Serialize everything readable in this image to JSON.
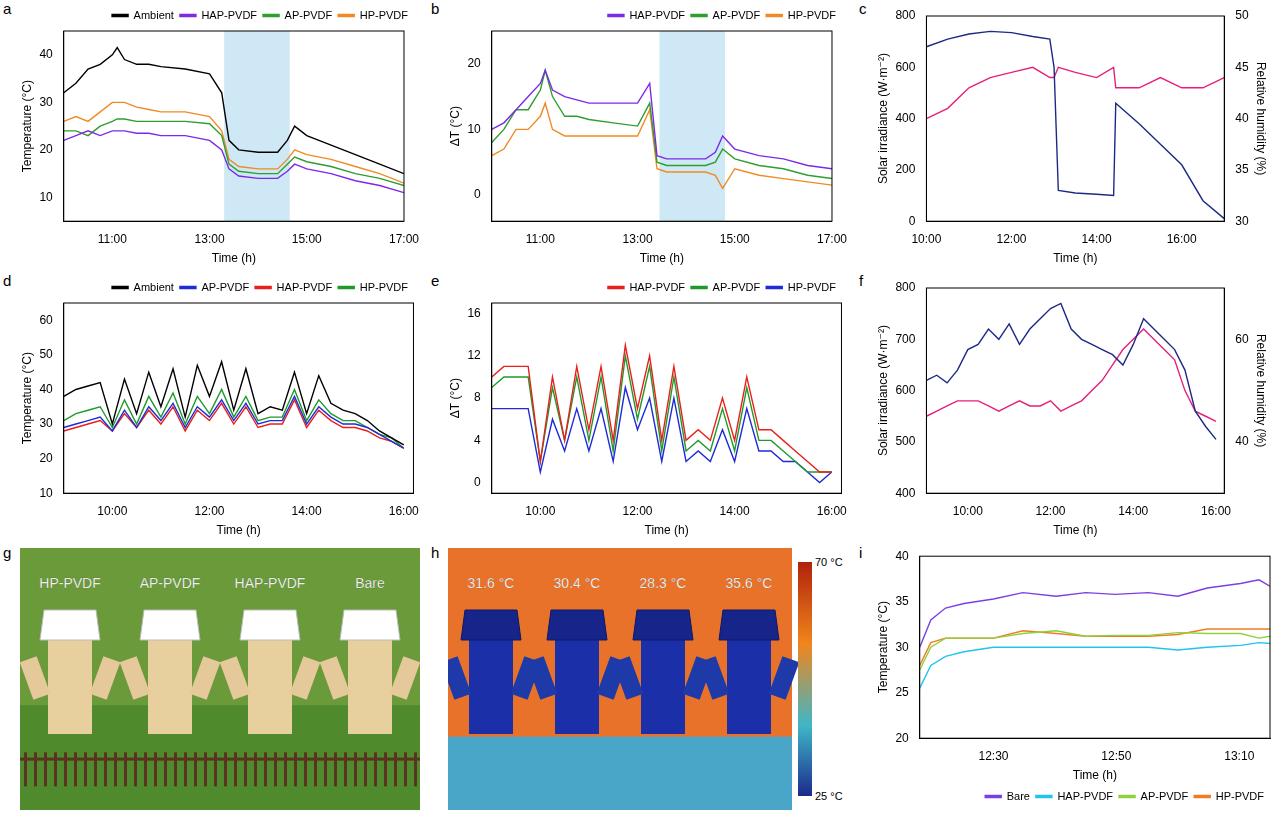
{
  "chart_data": [
    {
      "panel": "a",
      "type": "line",
      "xlabel": "Time (h)",
      "ylabel": "Temperature (°C)",
      "xlim": [
        10,
        17
      ],
      "xticks": [
        {
          "value": 11,
          "label": "11:00"
        },
        {
          "value": 13,
          "label": "13:00"
        },
        {
          "value": 15,
          "label": "15:00"
        },
        {
          "value": 17,
          "label": "17:00"
        }
      ],
      "ylim": [
        5,
        45
      ],
      "yticks": [
        10,
        20,
        30,
        40
      ],
      "grid": false,
      "legend": "top right",
      "highlight": [
        13.3,
        14.65
      ],
      "x": [
        10.0,
        10.25,
        10.5,
        10.75,
        11.0,
        11.1,
        11.25,
        11.5,
        11.75,
        12.0,
        12.5,
        13.0,
        13.25,
        13.4,
        13.6,
        14.0,
        14.4,
        14.6,
        14.75,
        15.0,
        15.5,
        16.0,
        16.5,
        17.0
      ],
      "series": [
        {
          "name": "Ambient",
          "color": "#000000",
          "values": [
            32,
            34,
            37,
            38,
            40,
            41.5,
            39,
            38,
            38,
            37.5,
            37,
            36,
            32,
            22,
            20,
            19.5,
            19.5,
            22,
            25,
            23,
            21,
            19,
            17,
            15
          ]
        },
        {
          "name": "HAP-PVDF",
          "color": "#7d2ae8",
          "values": [
            22,
            23,
            24,
            23,
            24,
            24,
            24,
            23.5,
            23.5,
            23,
            23,
            22,
            20,
            16,
            14.5,
            14,
            14,
            15.5,
            17,
            16,
            15,
            13.5,
            12.5,
            11
          ]
        },
        {
          "name": "AP-PVDF",
          "color": "#2e9e2e",
          "values": [
            24,
            24,
            23,
            25,
            26,
            26.5,
            26.5,
            26,
            26,
            26,
            26,
            25.5,
            23,
            17,
            15.5,
            15,
            15,
            17,
            18.5,
            17.5,
            16.5,
            15,
            14,
            12.5
          ]
        },
        {
          "name": "HP-PVDF",
          "color": "#f08a24",
          "values": [
            26,
            27,
            26,
            28,
            30,
            30,
            30,
            29,
            28.5,
            28,
            28,
            27,
            24,
            18,
            16.5,
            16,
            16,
            18,
            20,
            19,
            18,
            16.5,
            15,
            13
          ]
        }
      ]
    },
    {
      "panel": "b",
      "type": "line",
      "xlabel": "Time (h)",
      "ylabel": "ΔT (°C)",
      "xlim": [
        10,
        17
      ],
      "xticks": [
        {
          "value": 11,
          "label": "11:00"
        },
        {
          "value": 13,
          "label": "13:00"
        },
        {
          "value": 15,
          "label": "15:00"
        },
        {
          "value": 17,
          "label": "17:00"
        }
      ],
      "ylim": [
        -4,
        25
      ],
      "yticks": [
        0,
        10,
        20
      ],
      "grid": false,
      "legend": "top right",
      "highlight": [
        13.45,
        14.8
      ],
      "x": [
        10.0,
        10.25,
        10.5,
        10.75,
        11.0,
        11.1,
        11.25,
        11.5,
        11.75,
        12.0,
        12.5,
        13.0,
        13.25,
        13.4,
        13.6,
        14.0,
        14.4,
        14.6,
        14.75,
        15.0,
        15.5,
        16.0,
        16.5,
        17.0
      ],
      "series": [
        {
          "name": "HAP-PVDF",
          "color": "#7d2ae8",
          "values": [
            10,
            11,
            13,
            15,
            17,
            19,
            16,
            15,
            14.5,
            14,
            14,
            14,
            17,
            6,
            5.5,
            5.5,
            5.5,
            6.5,
            9,
            7,
            6,
            5.5,
            4.5,
            4
          ]
        },
        {
          "name": "AP-PVDF",
          "color": "#2e9e2e",
          "values": [
            8,
            10,
            13,
            13,
            16,
            19,
            15,
            12,
            12,
            11.5,
            11,
            10.5,
            14,
            5,
            4.5,
            4.5,
            4.5,
            5,
            7,
            5.5,
            4.5,
            4,
            3,
            2.5
          ]
        },
        {
          "name": "HP-PVDF",
          "color": "#f08a24",
          "values": [
            6,
            7,
            10,
            10,
            12,
            14,
            10,
            9,
            9,
            9,
            9,
            9,
            13,
            4,
            3.5,
            3.5,
            3.5,
            3,
            1,
            4,
            3,
            2.5,
            2,
            1.5
          ]
        }
      ]
    },
    {
      "panel": "c",
      "type": "line",
      "xlabel": "Time (h)",
      "ylabel": "Solar irradiance (W·m⁻²)",
      "y2label": "Relative humidity (%)",
      "xlim": [
        10,
        17
      ],
      "xticks": [
        {
          "value": 10,
          "label": "10:00"
        },
        {
          "value": 12,
          "label": "12:00"
        },
        {
          "value": 14,
          "label": "14:00"
        },
        {
          "value": 16,
          "label": "16:00"
        }
      ],
      "ylim": [
        0,
        800
      ],
      "yticks": [
        0,
        200,
        400,
        600,
        800
      ],
      "y2lim": [
        30,
        50
      ],
      "y2ticks": [
        30,
        35,
        40,
        45,
        50
      ],
      "grid": false,
      "x": [
        10.0,
        10.5,
        11.0,
        11.5,
        12.0,
        12.5,
        12.9,
        13.0,
        13.1,
        13.5,
        14.0,
        14.4,
        14.45,
        15.0,
        15.5,
        16.0,
        16.5,
        17.0
      ],
      "series": [
        {
          "name": "Solar irradiance",
          "color": "#1c2a86",
          "values": [
            680,
            710,
            730,
            740,
            735,
            720,
            710,
            600,
            120,
            110,
            105,
            100,
            460,
            380,
            300,
            220,
            80,
            10
          ]
        },
        {
          "name": "Relative humidity",
          "color": "#e6207a",
          "axis": "y2",
          "values": [
            40,
            41,
            43,
            44,
            44.5,
            45,
            44,
            44,
            45,
            44.5,
            44,
            45,
            43,
            43,
            44,
            43,
            43,
            44
          ]
        }
      ]
    },
    {
      "panel": "d",
      "type": "line",
      "xlabel": "Time (h)",
      "ylabel": "Temperature (°C)",
      "xlim": [
        9,
        16.2
      ],
      "xticks": [
        {
          "value": 10,
          "label": "10:00"
        },
        {
          "value": 12,
          "label": "12:00"
        },
        {
          "value": 14,
          "label": "14:00"
        },
        {
          "value": 16,
          "label": "16:00"
        }
      ],
      "ylim": [
        10,
        65
      ],
      "yticks": [
        10,
        20,
        30,
        40,
        50,
        60
      ],
      "grid": false,
      "legend": "top right",
      "x": [
        9.0,
        9.25,
        9.5,
        9.75,
        10.0,
        10.25,
        10.5,
        10.75,
        11.0,
        11.25,
        11.5,
        11.75,
        12.0,
        12.25,
        12.5,
        12.75,
        13.0,
        13.25,
        13.5,
        13.75,
        14.0,
        14.25,
        14.5,
        14.75,
        15.0,
        15.25,
        15.5,
        15.75,
        16.0
      ],
      "series": [
        {
          "name": "Ambient",
          "color": "#000000",
          "values": [
            38,
            40,
            41,
            42,
            30,
            43,
            33,
            45,
            35,
            46,
            32,
            47,
            38,
            48,
            34,
            46,
            33,
            35,
            34,
            45,
            33,
            44,
            36,
            34,
            33,
            31,
            28,
            26,
            24
          ]
        },
        {
          "name": "AP-PVDF",
          "color": "#1f2bd6",
          "values": [
            29,
            30,
            31,
            32,
            28,
            34,
            29,
            35,
            31,
            36,
            29,
            35,
            32,
            37,
            31,
            36,
            30,
            31,
            31,
            38,
            30,
            35,
            32,
            30,
            30,
            29,
            27,
            25,
            23
          ]
        },
        {
          "name": "HAP-PVDF",
          "color": "#e8201c",
          "values": [
            28,
            29,
            30,
            31,
            28,
            33,
            29,
            34,
            30,
            35,
            28,
            34,
            31,
            36,
            30,
            35,
            29,
            30,
            30,
            37,
            29,
            34,
            31,
            29,
            29,
            28,
            26,
            25,
            23
          ]
        },
        {
          "name": "HP-PVDF",
          "color": "#1e9a2a",
          "values": [
            31,
            33,
            34,
            35,
            29,
            37,
            30,
            38,
            32,
            39,
            30,
            38,
            33,
            40,
            32,
            38,
            31,
            32,
            32,
            40,
            31,
            37,
            33,
            31,
            31,
            29,
            27,
            26,
            23
          ]
        }
      ]
    },
    {
      "panel": "e",
      "type": "line",
      "xlabel": "Time (h)",
      "ylabel": "ΔT (°C)",
      "xlim": [
        9,
        16.2
      ],
      "xticks": [
        {
          "value": 10,
          "label": "10:00"
        },
        {
          "value": 12,
          "label": "12:00"
        },
        {
          "value": 14,
          "label": "14:00"
        },
        {
          "value": 16,
          "label": "16:00"
        }
      ],
      "ylim": [
        -1,
        17
      ],
      "yticks": [
        0,
        4,
        8,
        12,
        16
      ],
      "grid": false,
      "legend": "top right",
      "x": [
        9.0,
        9.25,
        9.5,
        9.75,
        10.0,
        10.25,
        10.5,
        10.75,
        11.0,
        11.25,
        11.5,
        11.75,
        12.0,
        12.25,
        12.5,
        12.75,
        13.0,
        13.25,
        13.5,
        13.75,
        14.0,
        14.25,
        14.5,
        14.75,
        15.0,
        15.25,
        15.5,
        15.75,
        16.0
      ],
      "series": [
        {
          "name": "HAP-PVDF",
          "color": "#e8201c",
          "values": [
            10,
            11,
            11,
            11,
            2,
            10,
            4,
            11,
            5,
            11,
            4,
            13,
            7,
            12,
            4,
            11,
            4,
            5,
            4,
            8,
            4,
            10,
            5,
            5,
            4,
            3,
            2,
            1,
            1
          ]
        },
        {
          "name": "AP-PVDF",
          "color": "#1e9a2a",
          "values": [
            9,
            10,
            10,
            10,
            2,
            9,
            4,
            10,
            4,
            10,
            3,
            12,
            6,
            11,
            3,
            10,
            3,
            4,
            3,
            7,
            3,
            9,
            4,
            4,
            3,
            2,
            1,
            1,
            1
          ]
        },
        {
          "name": "HP-PVDF",
          "color": "#1f2bd6",
          "values": [
            7,
            7,
            7,
            7,
            1,
            6,
            3,
            7,
            3,
            7,
            2,
            9,
            5,
            8,
            2,
            8,
            2,
            3,
            2,
            5,
            2,
            7,
            3,
            3,
            2,
            2,
            1,
            0,
            1
          ]
        }
      ]
    },
    {
      "panel": "f",
      "type": "line",
      "xlabel": "Time (h)",
      "ylabel": "Solar irradiance (W·m⁻²)",
      "y2label": "Relative humidity (%)",
      "xlim": [
        9,
        16.2
      ],
      "xticks": [
        {
          "value": 10,
          "label": "10:00"
        },
        {
          "value": 12,
          "label": "12:00"
        },
        {
          "value": 14,
          "label": "14:00"
        },
        {
          "value": 16,
          "label": "16:00"
        }
      ],
      "ylim": [
        400,
        800
      ],
      "yticks": [
        400,
        500,
        600,
        700,
        800
      ],
      "y2lim": [
        30,
        70
      ],
      "y2ticks": [
        40,
        60
      ],
      "grid": false,
      "x": [
        9.0,
        9.25,
        9.5,
        9.75,
        10.0,
        10.25,
        10.5,
        10.75,
        11.0,
        11.25,
        11.5,
        11.75,
        12.0,
        12.25,
        12.5,
        12.75,
        13.0,
        13.25,
        13.5,
        13.75,
        14.0,
        14.25,
        14.5,
        14.75,
        15.0,
        15.25,
        15.5,
        15.75,
        16.0
      ],
      "series": [
        {
          "name": "Solar irradiance",
          "color": "#1c2a86",
          "values": [
            620,
            630,
            615,
            640,
            680,
            690,
            720,
            700,
            730,
            690,
            720,
            740,
            760,
            770,
            720,
            700,
            690,
            680,
            670,
            650,
            690,
            740,
            720,
            700,
            680,
            640,
            560,
            530,
            505
          ]
        },
        {
          "name": "Relative humidity",
          "color": "#e6207a",
          "axis": "y2",
          "values": [
            45,
            46,
            47,
            48,
            48,
            48,
            47,
            46,
            47,
            48,
            47,
            47,
            48,
            46,
            47,
            48,
            50,
            52,
            55,
            58,
            60,
            62,
            60,
            58,
            56,
            50,
            46,
            45,
            44
          ]
        }
      ]
    },
    {
      "panel": "i",
      "type": "line",
      "xlabel": "Time (h)",
      "ylabel": "Temperature (°C)",
      "xlim": [
        12.3,
        13.25
      ],
      "xticks": [
        {
          "value": 12.5,
          "label": "12:30"
        },
        {
          "value": 12.8333,
          "label": "12:50"
        },
        {
          "value": 13.1667,
          "label": "13:10"
        }
      ],
      "ylim": [
        20,
        40
      ],
      "yticks": [
        20,
        25,
        30,
        35,
        40
      ],
      "grid": false,
      "legend": "bottom right",
      "x": [
        12.3,
        12.33,
        12.37,
        12.42,
        12.5,
        12.58,
        12.67,
        12.75,
        12.83,
        12.92,
        13.0,
        13.08,
        13.17,
        13.22,
        13.25
      ],
      "series": [
        {
          "name": "Bare",
          "color": "#7b3fe4",
          "values": [
            30,
            33,
            34.3,
            34.8,
            35.3,
            36,
            35.6,
            36,
            35.8,
            36,
            35.6,
            36.5,
            37,
            37.4,
            36.7
          ]
        },
        {
          "name": "HAP-PVDF",
          "color": "#22c3f0",
          "values": [
            25.5,
            28,
            29,
            29.5,
            30,
            30,
            30,
            30,
            30,
            30,
            29.7,
            30,
            30.2,
            30.5,
            30.4
          ]
        },
        {
          "name": "AP-PVDF",
          "color": "#8fd13f",
          "values": [
            27.5,
            30,
            31,
            31,
            31,
            31.5,
            31.8,
            31.2,
            31.3,
            31.3,
            31.6,
            31.5,
            31.5,
            31,
            31.2
          ]
        },
        {
          "name": "HP-PVDF",
          "color": "#f07d25",
          "values": [
            28,
            30.5,
            31,
            31,
            31,
            31.8,
            31.5,
            31.2,
            31.2,
            31.2,
            31.4,
            32,
            32,
            32,
            32
          ]
        }
      ]
    }
  ],
  "photos": [
    {
      "panel": "g",
      "type": "photo",
      "labels": [
        "HP-PVDF",
        "AP-PVDF",
        "HAP-PVDF",
        "Bare"
      ]
    },
    {
      "panel": "h",
      "type": "thermal_image",
      "labels": [
        "31.6 °C",
        "30.4 °C",
        "28.3 °C",
        "35.6 °C"
      ],
      "colorbar": {
        "range": [
          25,
          70
        ],
        "ticks": [
          {
            "value": 70,
            "label": "70 °C"
          },
          {
            "value": 25,
            "label": "25 °C"
          }
        ]
      }
    }
  ]
}
